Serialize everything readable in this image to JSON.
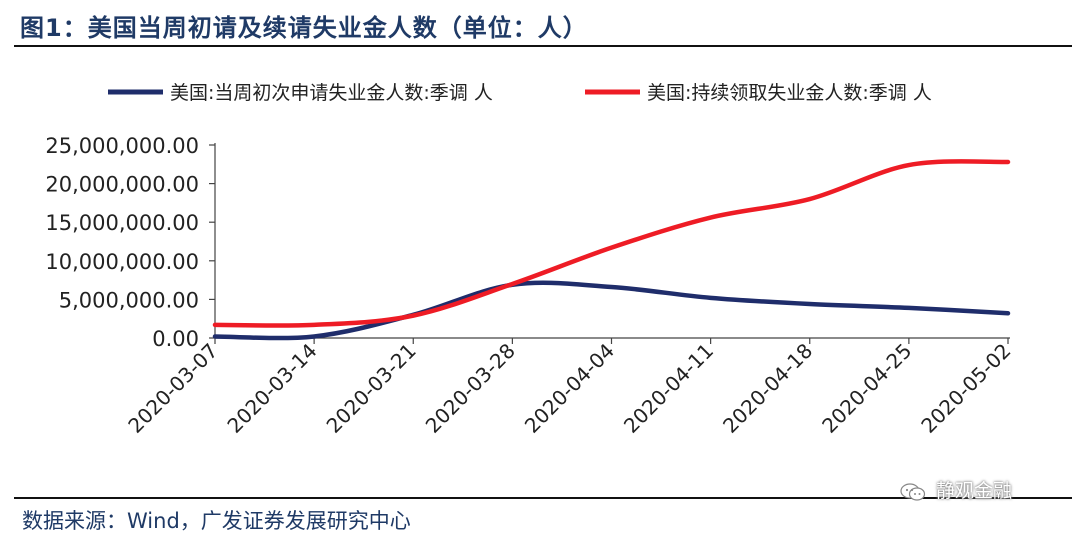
{
  "header": {
    "title": "图1：美国当周初请及续请失业金人数（单位：人）"
  },
  "footer": {
    "source": "数据来源：Wind，广发证券发展研究中心",
    "watermark": "静观金融"
  },
  "colors": {
    "series_initial": "#1f2d6b",
    "series_continuing": "#ee1c25",
    "title": "#1f3a66"
  },
  "icons": {
    "watermark": "wechat-icon"
  },
  "chart_data": {
    "type": "line",
    "title": "",
    "xlabel": "",
    "ylabel": "",
    "ylim": [
      0,
      25000000
    ],
    "yticks": [
      "0.00",
      "5,000,000.00",
      "10,000,000.00",
      "15,000,000.00",
      "20,000,000.00",
      "25,000,000.00"
    ],
    "yticks_values": [
      0,
      5000000,
      10000000,
      15000000,
      20000000,
      25000000
    ],
    "x": [
      "2020-03-07",
      "2020-03-14",
      "2020-03-21",
      "2020-03-28",
      "2020-04-04",
      "2020-04-11",
      "2020-04-18",
      "2020-04-25",
      "2020-05-02"
    ],
    "grid": false,
    "legend": "top",
    "series": [
      {
        "name": "美国:当周初次申请失业金人数:季调 人",
        "values": [
          200000,
          200000,
          3000000,
          6900000,
          6600000,
          5200000,
          4400000,
          3900000,
          3200000
        ]
      },
      {
        "name": "美国:持续领取失业金人数:季调 人",
        "values": [
          1700000,
          1700000,
          2900000,
          7000000,
          11700000,
          15600000,
          18000000,
          22400000,
          22800000
        ]
      }
    ]
  }
}
